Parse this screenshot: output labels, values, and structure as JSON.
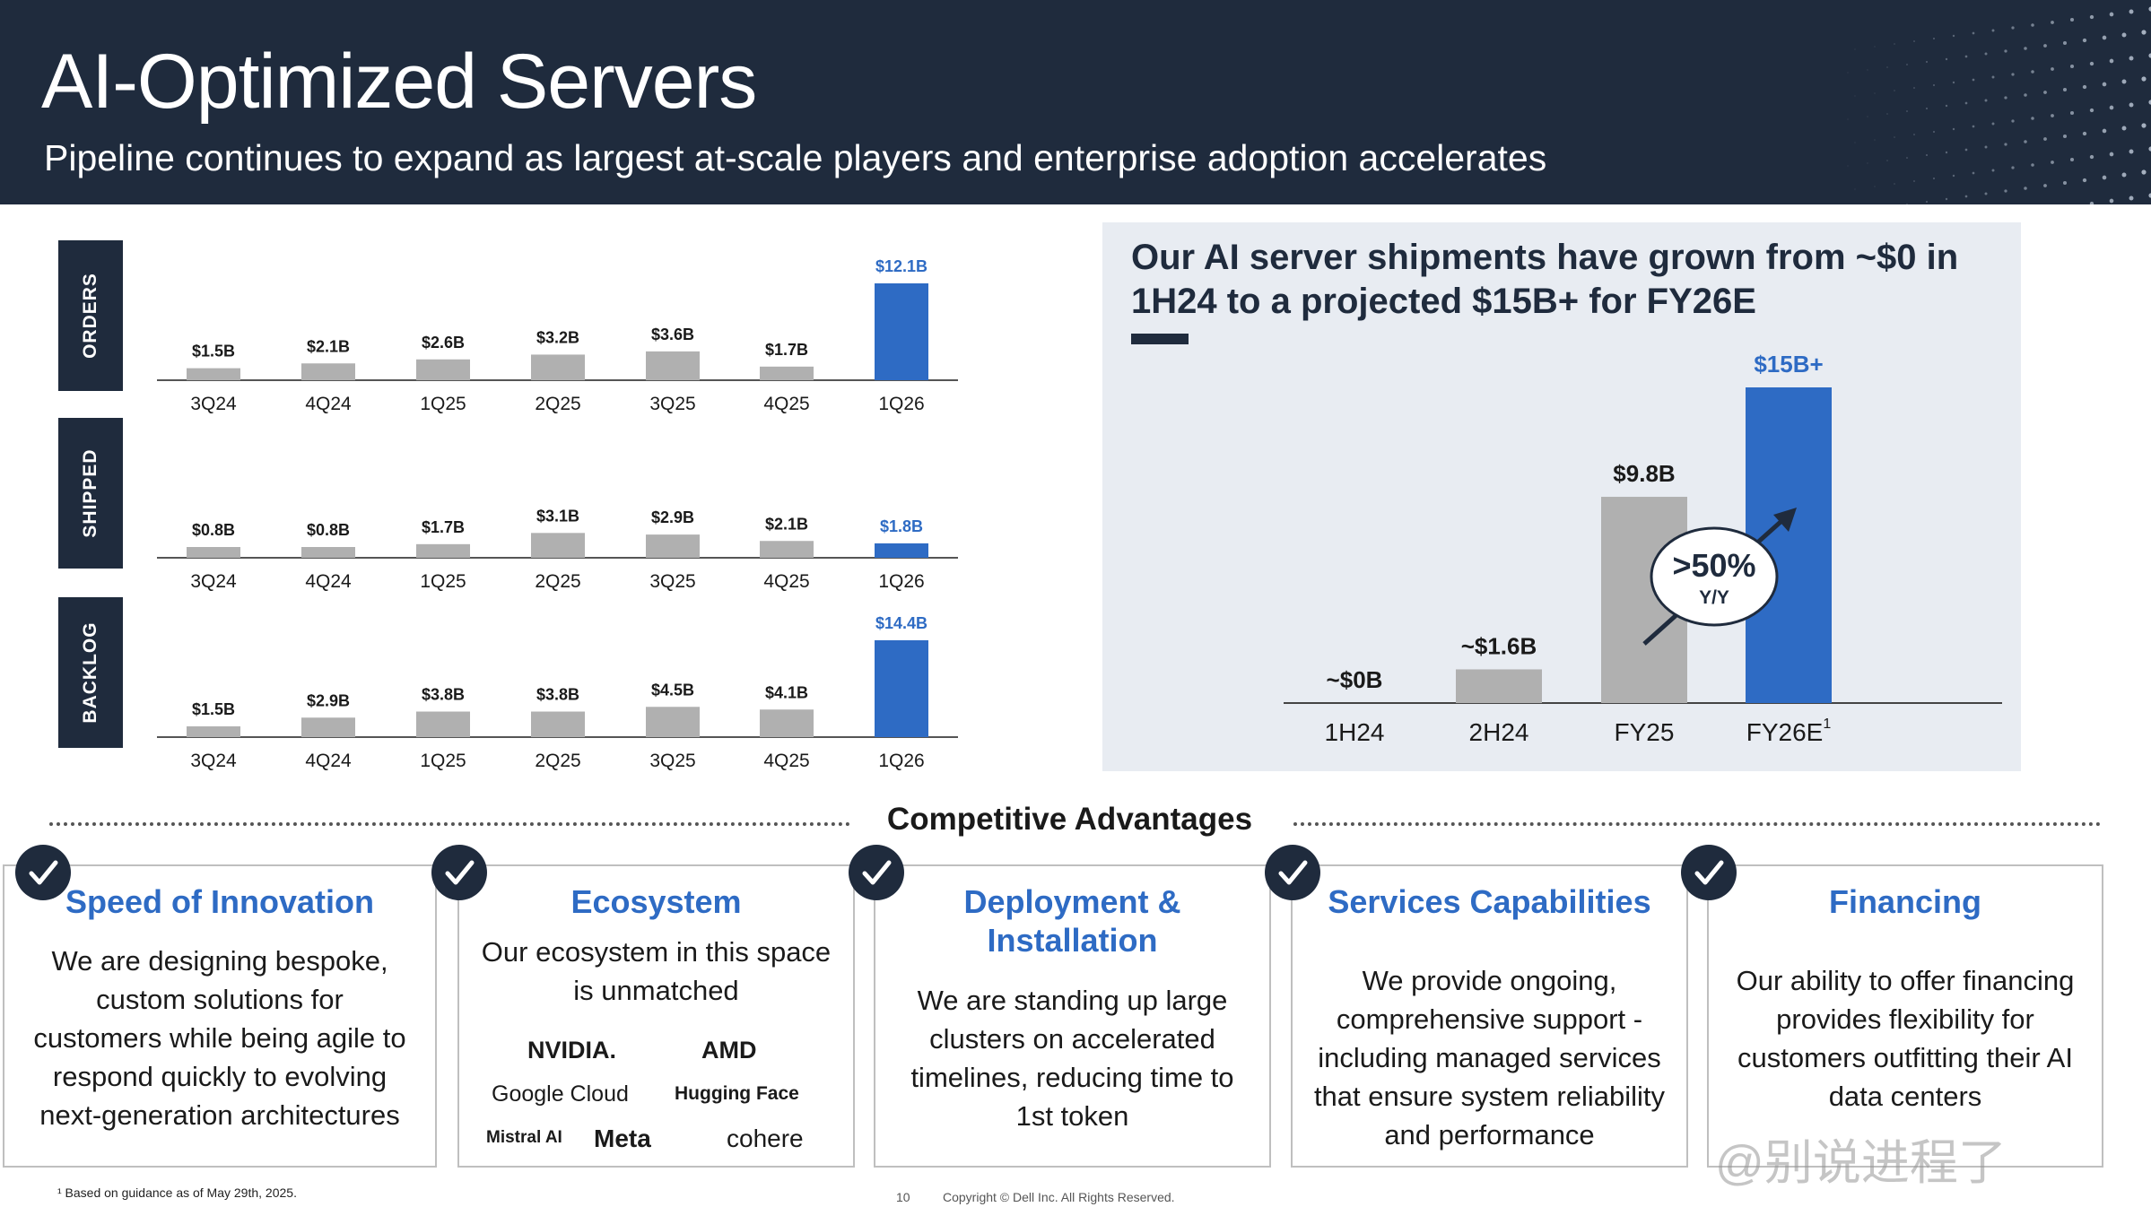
{
  "header": {
    "title": "AI-Optimized Servers",
    "subtitle": "Pipeline continues to expand as largest at-scale players and enterprise adoption accelerates"
  },
  "colors": {
    "navy": "#1f2b3d",
    "gray_bar": "#b0b0b0",
    "blue_bar": "#2e6bc4",
    "accent_blue": "#2e6bc4"
  },
  "chart_data": [
    {
      "type": "bar",
      "title": "ORDERS",
      "categories": [
        "3Q24",
        "4Q24",
        "1Q25",
        "2Q25",
        "3Q25",
        "4Q25",
        "1Q26"
      ],
      "values": [
        1.5,
        2.1,
        2.6,
        3.2,
        3.6,
        1.7,
        12.1
      ],
      "labels": [
        "$1.5B",
        "$2.1B",
        "$2.6B",
        "$3.2B",
        "$3.6B",
        "$1.7B",
        "$12.1B"
      ],
      "highlight_last": true
    },
    {
      "type": "bar",
      "title": "SHIPPED",
      "categories": [
        "3Q24",
        "4Q24",
        "1Q25",
        "2Q25",
        "3Q25",
        "4Q25",
        "1Q26"
      ],
      "values": [
        0.8,
        0.8,
        1.7,
        3.1,
        2.9,
        2.1,
        1.8
      ],
      "labels": [
        "$0.8B",
        "$0.8B",
        "$1.7B",
        "$3.1B",
        "$2.9B",
        "$2.1B",
        "$1.8B"
      ],
      "highlight_last": true
    },
    {
      "type": "bar",
      "title": "BACKLOG",
      "categories": [
        "3Q24",
        "4Q24",
        "1Q25",
        "2Q25",
        "3Q25",
        "4Q25",
        "1Q26"
      ],
      "values": [
        1.5,
        2.9,
        3.8,
        3.8,
        4.5,
        4.1,
        14.4
      ],
      "labels": [
        "$1.5B",
        "$2.9B",
        "$3.8B",
        "$3.8B",
        "$4.5B",
        "$4.1B",
        "$14.4B"
      ],
      "highlight_last": true
    },
    {
      "type": "bar",
      "title": "Our AI server shipments have grown from ~$0 in 1H24 to a projected $15B+ for FY26E",
      "categories": [
        "1H24",
        "2H24",
        "FY25",
        "FY26E"
      ],
      "category_superscripts": [
        "",
        "",
        "",
        "1"
      ],
      "values": [
        0,
        1.6,
        9.8,
        15
      ],
      "labels": [
        "~$0B",
        "~$1.6B",
        "$9.8B",
        "$15B+"
      ],
      "highlight_last": true,
      "annotation": {
        "text": ">50%",
        "subtext": "Y/Y"
      }
    }
  ],
  "advantages": {
    "title": "Competitive Advantages",
    "cards": [
      {
        "title": "Speed of Innovation",
        "body": [
          "We are designing bespoke,",
          "custom solutions for",
          "customers while being agile to",
          "respond quickly to evolving",
          "next-generation architectures"
        ]
      },
      {
        "title": "Ecosystem",
        "body": [
          "Our ecosystem in this space",
          "is unmatched"
        ],
        "logos": [
          "NVIDIA.",
          "AMD",
          "Google Cloud",
          "Hugging Face",
          "Mistral AI",
          "Meta",
          "cohere"
        ]
      },
      {
        "title": "Deployment &\nInstallation",
        "title_lines": [
          "Deployment &",
          "Installation"
        ],
        "body": [
          "We are standing up large",
          "clusters on accelerated",
          "timelines, reducing time to",
          "1st token"
        ]
      },
      {
        "title": "Services Capabilities",
        "body": [
          "We provide ongoing,",
          "comprehensive support -",
          "including managed services",
          "that ensure system reliability",
          "and performance"
        ]
      },
      {
        "title": "Financing",
        "body": [
          "Our ability to offer financing",
          "provides flexibility for",
          "customers outfitting their AI",
          "data centers"
        ]
      }
    ]
  },
  "footer": {
    "footnote": "¹ Based on guidance as of May 29th, 2025.",
    "page_number": "10",
    "copyright": "Copyright © Dell Inc. All Rights Reserved.",
    "watermark": "@别说进程了"
  }
}
